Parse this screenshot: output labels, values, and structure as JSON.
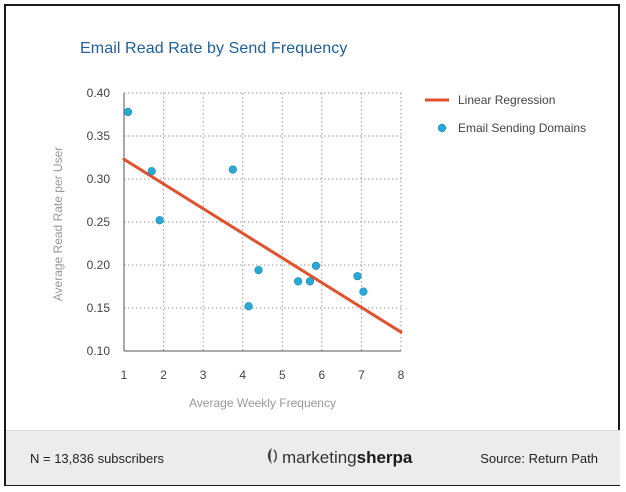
{
  "chart_data": {
    "type": "scatter",
    "title": "Email Read Rate by Send Frequency",
    "xlabel": "Average Weekly Frequency",
    "ylabel": "Average Read Rate per User",
    "xlim": [
      1,
      8
    ],
    "ylim": [
      0.1,
      0.4
    ],
    "x_ticks": [
      "1",
      "2",
      "3",
      "4",
      "5",
      "6",
      "7",
      "8"
    ],
    "y_ticks": [
      "0.40",
      "0.35",
      "0.30",
      "0.25",
      "0.20",
      "0.15",
      "0.10"
    ],
    "grid": true,
    "legend_position": "top-right",
    "series": [
      {
        "name": "Email Sending Domains",
        "kind": "scatter",
        "color": "#29a9d6",
        "points": [
          {
            "x": 1.1,
            "y": 0.378
          },
          {
            "x": 1.7,
            "y": 0.309
          },
          {
            "x": 1.9,
            "y": 0.252
          },
          {
            "x": 3.75,
            "y": 0.311
          },
          {
            "x": 4.15,
            "y": 0.152
          },
          {
            "x": 4.4,
            "y": 0.194
          },
          {
            "x": 5.4,
            "y": 0.181
          },
          {
            "x": 5.7,
            "y": 0.181
          },
          {
            "x": 5.85,
            "y": 0.199
          },
          {
            "x": 6.9,
            "y": 0.187
          },
          {
            "x": 7.05,
            "y": 0.169
          }
        ]
      },
      {
        "name": "Linear Regression",
        "kind": "line",
        "color": "#e2502c",
        "points": [
          {
            "x": 1,
            "y": 0.323
          },
          {
            "x": 8,
            "y": 0.122
          }
        ]
      }
    ]
  },
  "footer": {
    "sample_size": "N = 13,836 subscribers",
    "source": "Source: Return Path",
    "logo_part1": "marketing",
    "logo_part2": "sherpa"
  }
}
